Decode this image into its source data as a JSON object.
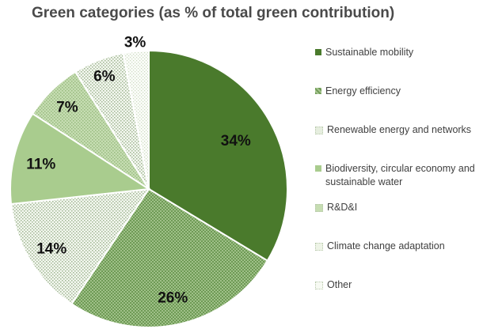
{
  "chart_data": {
    "type": "pie",
    "title": "Green categories (as % of total green contribution)",
    "slices": [
      {
        "name": "Sustainable mobility",
        "value": 34,
        "label": "34%",
        "color": "#4a7a2c",
        "pattern": "solid"
      },
      {
        "name": "Energy efficiency",
        "value": 26,
        "label": "26%",
        "color": "#6e9a55",
        "pattern": "checker"
      },
      {
        "name": "Renewable energy and networks",
        "value": 14,
        "label": "14%",
        "color": "#e6eedf",
        "pattern": "dots"
      },
      {
        "name": "Biodiversity, circular economy and sustainable water",
        "value": 11,
        "label": "11%",
        "color": "#a9cc8e",
        "pattern": "solid"
      },
      {
        "name": "R&D&I",
        "value": 7,
        "label": "7%",
        "color": "#c6ddb2",
        "pattern": "dots"
      },
      {
        "name": "Climate change adaptation",
        "value": 6,
        "label": "6%",
        "color": "#eef4e7",
        "pattern": "dots"
      },
      {
        "name": "Other",
        "value": 3,
        "label": "3%",
        "color": "#f7faf3",
        "pattern": "dots"
      }
    ],
    "legend_position": "right"
  }
}
